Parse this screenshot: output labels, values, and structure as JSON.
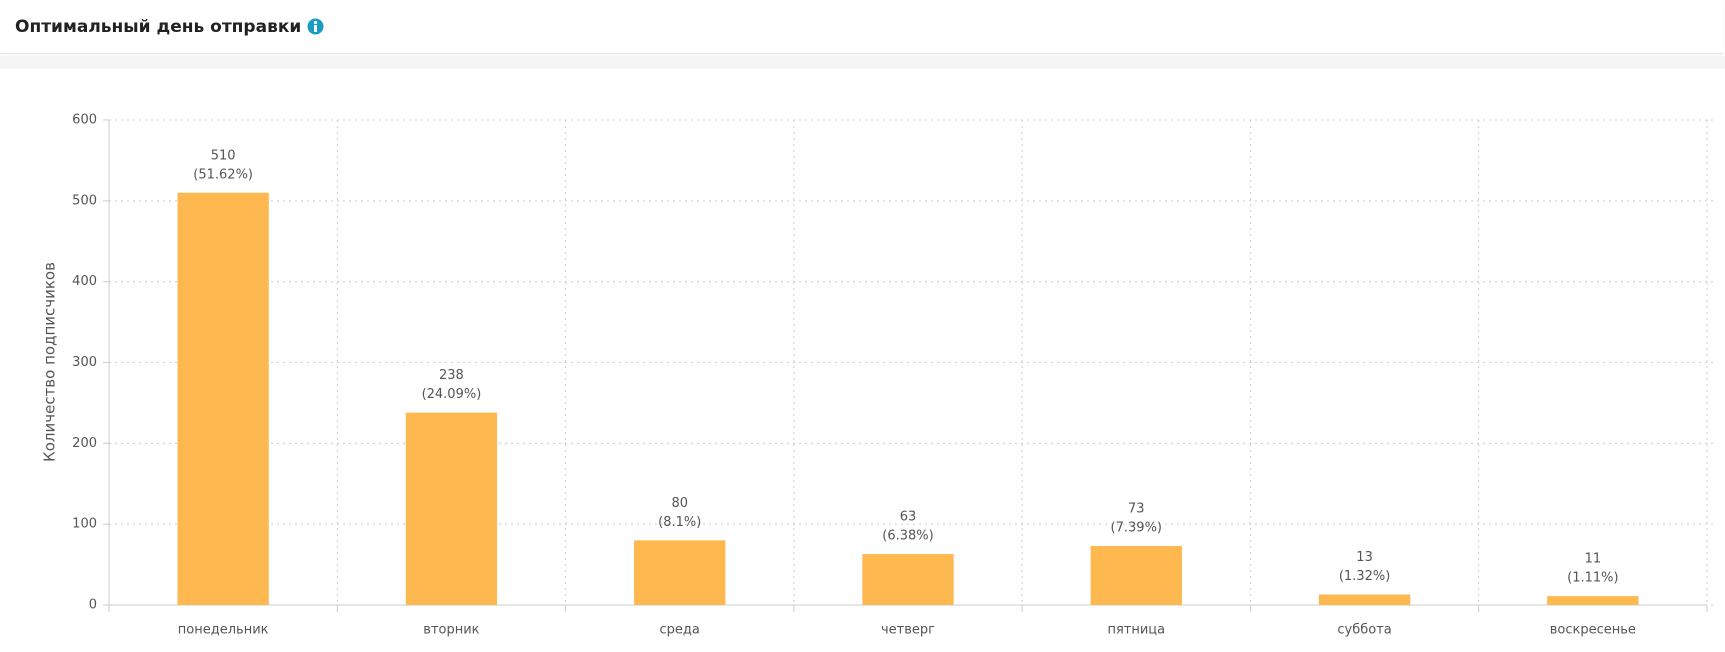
{
  "header": {
    "title": "Оптимальный день отправки"
  },
  "chart_data": {
    "type": "bar",
    "y_label": "Количество подписчиков",
    "categories": [
      "понедельник",
      "вторник",
      "среда",
      "четверг",
      "пятница",
      "суббота",
      "воскресенье"
    ],
    "values": [
      510,
      238,
      80,
      63,
      73,
      13,
      11
    ],
    "percent_labels": [
      "(51.62%)",
      "(24.09%)",
      "(8.1%)",
      "(6.38%)",
      "(7.39%)",
      "(1.32%)",
      "(1.11%)"
    ],
    "color": "#fdb84f",
    "ylim": [
      0,
      600
    ],
    "yticks": [
      0,
      100,
      200,
      300,
      400,
      500,
      600
    ],
    "grid": true
  }
}
